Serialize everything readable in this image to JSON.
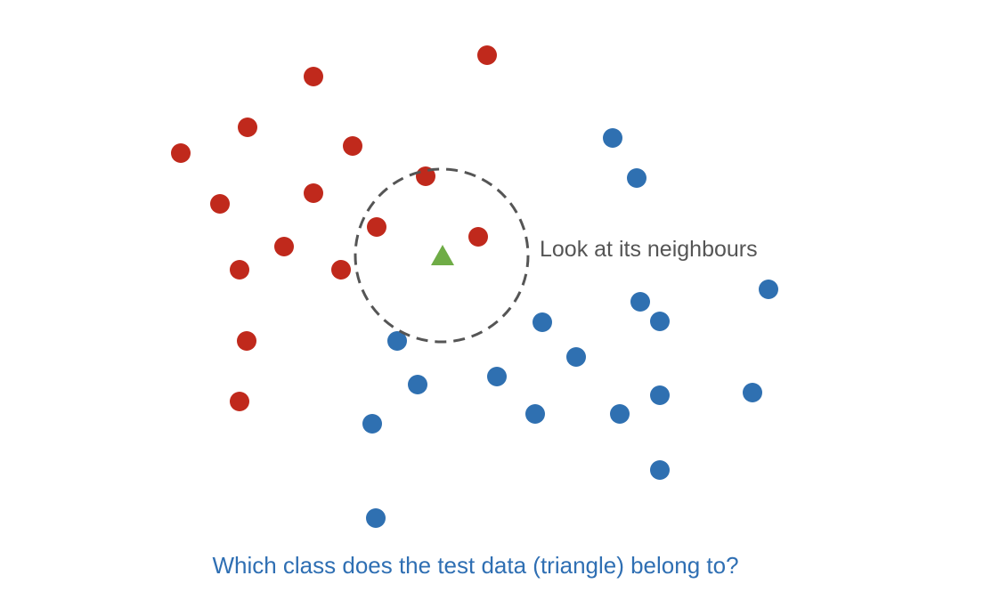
{
  "annotation": "Look at its neighbours",
  "question": "Which class does the test data (triangle) belong to?",
  "colors": {
    "class_a": "#c0291c",
    "class_b": "#2f70b1",
    "test_point": "#6fac46",
    "circle": "#555555",
    "question_text": "#2f6fb3"
  },
  "legend_semantics": {
    "class_a_marker": "red-circle",
    "class_b_marker": "blue-circle",
    "test_marker": "green-triangle",
    "neighbourhood": "dashed-circle"
  }
}
